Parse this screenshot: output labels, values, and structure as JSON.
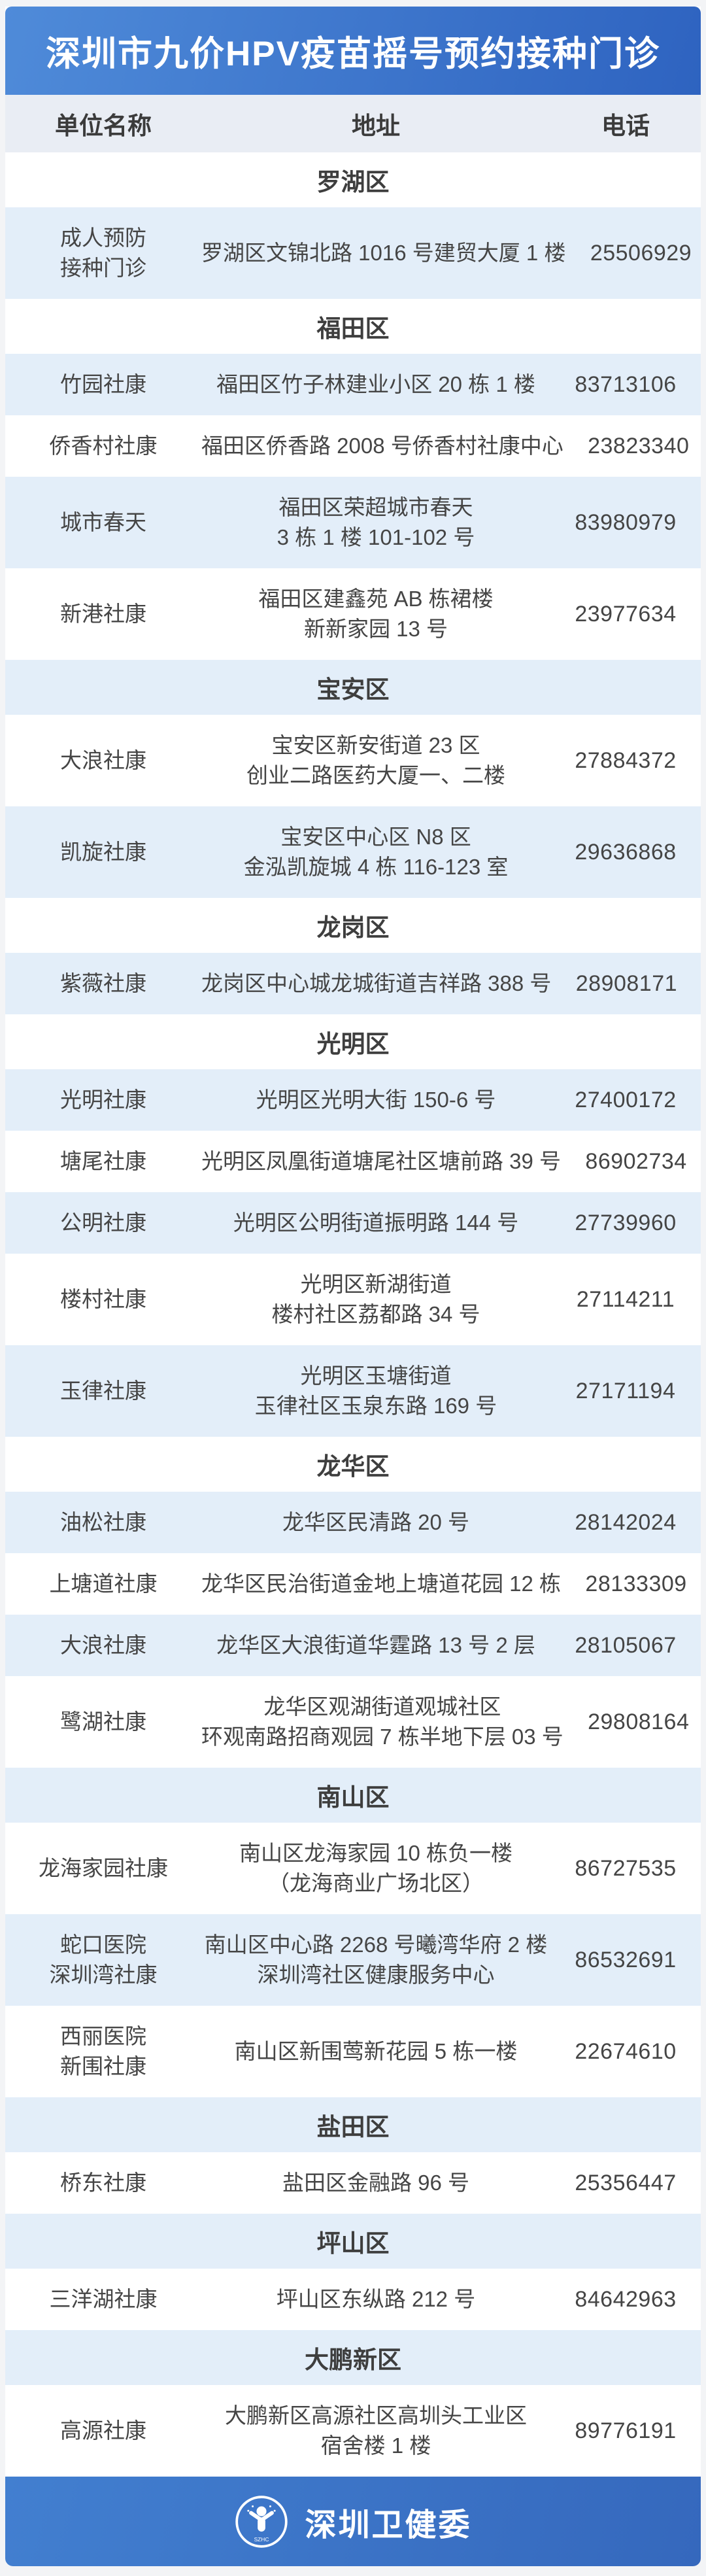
{
  "title": {
    "text": "深圳市九价HPV疫苗摇号预约接种门诊"
  },
  "columns": {
    "unit": "单位名称",
    "address": "地址",
    "phone": "电话"
  },
  "colors": {
    "title_gradient_start": "#4f8bd9",
    "title_gradient_end": "#2e63c0",
    "footer_gradient_start": "#427fd0",
    "footer_gradient_end": "#3568bd",
    "header_row_bg": "#e9edf4",
    "row_alternate_bg": "#e3eef9",
    "row_base_bg": "#ffffff",
    "body_text": "#454545"
  },
  "table": {
    "rows": [
      {
        "type": "section",
        "label": "罗湖区"
      },
      {
        "type": "clinic",
        "name_lines": [
          "成人预防",
          "接种门诊"
        ],
        "addr_lines": [
          "罗湖区文锦北路 1016 号建贸大厦 1 楼"
        ],
        "phone": "25506929"
      },
      {
        "type": "section",
        "label": "福田区"
      },
      {
        "type": "clinic",
        "name_lines": [
          "竹园社康"
        ],
        "addr_lines": [
          "福田区竹子林建业小区 20 栋 1 楼"
        ],
        "phone": "83713106"
      },
      {
        "type": "clinic",
        "name_lines": [
          "侨香村社康"
        ],
        "addr_lines": [
          "福田区侨香路 2008 号侨香村社康中心"
        ],
        "phone": "23823340"
      },
      {
        "type": "clinic",
        "name_lines": [
          "城市春天"
        ],
        "addr_lines": [
          "福田区荣超城市春天",
          "3 栋 1 楼 101-102 号"
        ],
        "phone": "83980979"
      },
      {
        "type": "clinic",
        "name_lines": [
          "新港社康"
        ],
        "addr_lines": [
          "福田区建鑫苑 AB 栋裙楼",
          "新新家园 13 号"
        ],
        "phone": "23977634"
      },
      {
        "type": "section",
        "label": "宝安区"
      },
      {
        "type": "clinic",
        "name_lines": [
          "大浪社康"
        ],
        "addr_lines": [
          "宝安区新安街道 23 区",
          "创业二路医药大厦一、二楼"
        ],
        "phone": "27884372"
      },
      {
        "type": "clinic",
        "name_lines": [
          "凯旋社康"
        ],
        "addr_lines": [
          "宝安区中心区 N8 区",
          "金泓凯旋城 4 栋 116-123 室"
        ],
        "phone": "29636868"
      },
      {
        "type": "section",
        "label": "龙岗区"
      },
      {
        "type": "clinic",
        "name_lines": [
          "紫薇社康"
        ],
        "addr_lines": [
          "龙岗区中心城龙城街道吉祥路 388 号"
        ],
        "phone": "28908171"
      },
      {
        "type": "section",
        "label": "光明区"
      },
      {
        "type": "clinic",
        "name_lines": [
          "光明社康"
        ],
        "addr_lines": [
          "光明区光明大街 150-6 号"
        ],
        "phone": "27400172"
      },
      {
        "type": "clinic",
        "name_lines": [
          "塘尾社康"
        ],
        "addr_lines": [
          "光明区凤凰街道塘尾社区塘前路 39 号"
        ],
        "phone": "86902734"
      },
      {
        "type": "clinic",
        "name_lines": [
          "公明社康"
        ],
        "addr_lines": [
          "光明区公明街道振明路 144 号"
        ],
        "phone": "27739960"
      },
      {
        "type": "clinic",
        "name_lines": [
          "楼村社康"
        ],
        "addr_lines": [
          "光明区新湖街道",
          "楼村社区荔都路 34 号"
        ],
        "phone": "27114211"
      },
      {
        "type": "clinic",
        "name_lines": [
          "玉律社康"
        ],
        "addr_lines": [
          "光明区玉塘街道",
          "玉律社区玉泉东路 169 号"
        ],
        "phone": "27171194"
      },
      {
        "type": "section",
        "label": "龙华区"
      },
      {
        "type": "clinic",
        "name_lines": [
          "油松社康"
        ],
        "addr_lines": [
          "龙华区民清路 20 号"
        ],
        "phone": "28142024"
      },
      {
        "type": "clinic",
        "name_lines": [
          "上塘道社康"
        ],
        "addr_lines": [
          "龙华区民治街道金地上塘道花园 12 栋"
        ],
        "phone": "28133309"
      },
      {
        "type": "clinic",
        "name_lines": [
          "大浪社康"
        ],
        "addr_lines": [
          "龙华区大浪街道华霆路 13 号 2 层"
        ],
        "phone": "28105067"
      },
      {
        "type": "clinic",
        "name_lines": [
          "鹭湖社康"
        ],
        "addr_lines": [
          "龙华区观湖街道观城社区",
          "环观南路招商观园 7 栋半地下层 03 号"
        ],
        "phone": "29808164"
      },
      {
        "type": "section",
        "label": "南山区"
      },
      {
        "type": "clinic",
        "name_lines": [
          "龙海家园社康"
        ],
        "addr_lines": [
          "南山区龙海家园 10 栋负一楼",
          "（龙海商业广场北区）"
        ],
        "phone": "86727535"
      },
      {
        "type": "clinic",
        "name_lines": [
          "蛇口医院",
          "深圳湾社康"
        ],
        "addr_lines": [
          "南山区中心路 2268 号曦湾华府 2 楼",
          "深圳湾社区健康服务中心"
        ],
        "phone": "86532691"
      },
      {
        "type": "clinic",
        "name_lines": [
          "西丽医院",
          "新围社康"
        ],
        "addr_lines": [
          "南山区新围莺新花园 5 栋一楼"
        ],
        "phone": "22674610"
      },
      {
        "type": "section",
        "label": "盐田区"
      },
      {
        "type": "clinic",
        "name_lines": [
          "桥东社康"
        ],
        "addr_lines": [
          "盐田区金融路 96 号"
        ],
        "phone": "25356447"
      },
      {
        "type": "section",
        "label": "坪山区"
      },
      {
        "type": "clinic",
        "name_lines": [
          "三洋湖社康"
        ],
        "addr_lines": [
          "坪山区东纵路 212 号"
        ],
        "phone": "84642963"
      },
      {
        "type": "section",
        "label": "大鹏新区"
      },
      {
        "type": "clinic",
        "name_lines": [
          "高源社康"
        ],
        "addr_lines": [
          "大鹏新区高源社区高圳头工业区",
          "宿舍楼 1 楼"
        ],
        "phone": "89776191"
      }
    ]
  },
  "footer": {
    "label": "深圳卫健委",
    "logo_text": "SZHC"
  }
}
